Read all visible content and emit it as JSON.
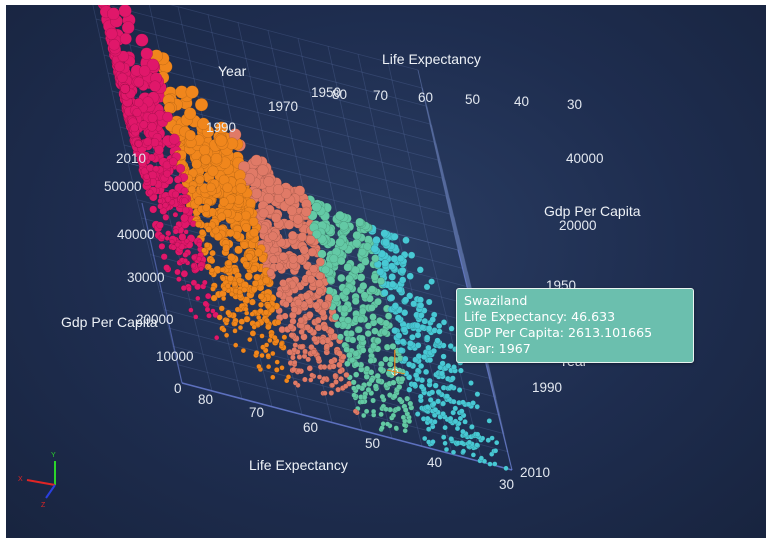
{
  "chart_data": {
    "type": "scatter",
    "dimensions": "3d",
    "axes": {
      "gdp": {
        "label": "Gdp Per Capita",
        "range": [
          0,
          50000
        ],
        "ticks_front": [
          "0",
          "10000",
          "20000",
          "30000",
          "40000",
          "50000"
        ],
        "ticks_right": [
          "20000",
          "40000"
        ]
      },
      "life": {
        "label": "Life Expectancy",
        "range": [
          30,
          85
        ],
        "ticks_front": [
          "80",
          "70",
          "60",
          "50",
          "40",
          "30"
        ],
        "ticks_top": [
          "80",
          "70",
          "60",
          "50",
          "40",
          "30"
        ]
      },
      "year": {
        "label": "Year",
        "range": [
          1950,
          2010
        ],
        "ticks_left": [
          "2010",
          "1990",
          "1970",
          "1950"
        ],
        "ticks_right": [
          "1950",
          "1990",
          "2010"
        ]
      }
    },
    "axis_titles": {
      "year_top": "Year",
      "life_top": "Life Expectancy",
      "gdp_right": "Gdp Per Capita",
      "gdp_left": "Gdp Per Capita",
      "life_bottom": "Life Expectancy",
      "year_right": "Year"
    },
    "color_scale": [
      {
        "max_life": 45,
        "color": "#48c8d4"
      },
      {
        "max_life": 55,
        "color": "#63c9a5"
      },
      {
        "max_life": 65,
        "color": "#e07a67"
      },
      {
        "max_life": 76,
        "color": "#f0861c"
      },
      {
        "max_life": 90,
        "color": "#e0176a"
      }
    ],
    "series_note": "Countries by year, ~2000 points; bubble size grows with year",
    "highlight": {
      "name": "Swaziland",
      "life": 46.633,
      "gdp": 2613.101665,
      "year": 1967
    }
  },
  "tooltip": {
    "name": "Swaziland",
    "life": "Life Expectancy: 46.633",
    "gdp": "GDP Per Capita: 2613.101665",
    "year": "Year: 1967"
  },
  "gizmo": {
    "y": "Y",
    "x": "X",
    "z": "Z",
    "colors": {
      "x": "#e02525",
      "y": "#2bd42b",
      "z": "#2a3fe0"
    }
  }
}
